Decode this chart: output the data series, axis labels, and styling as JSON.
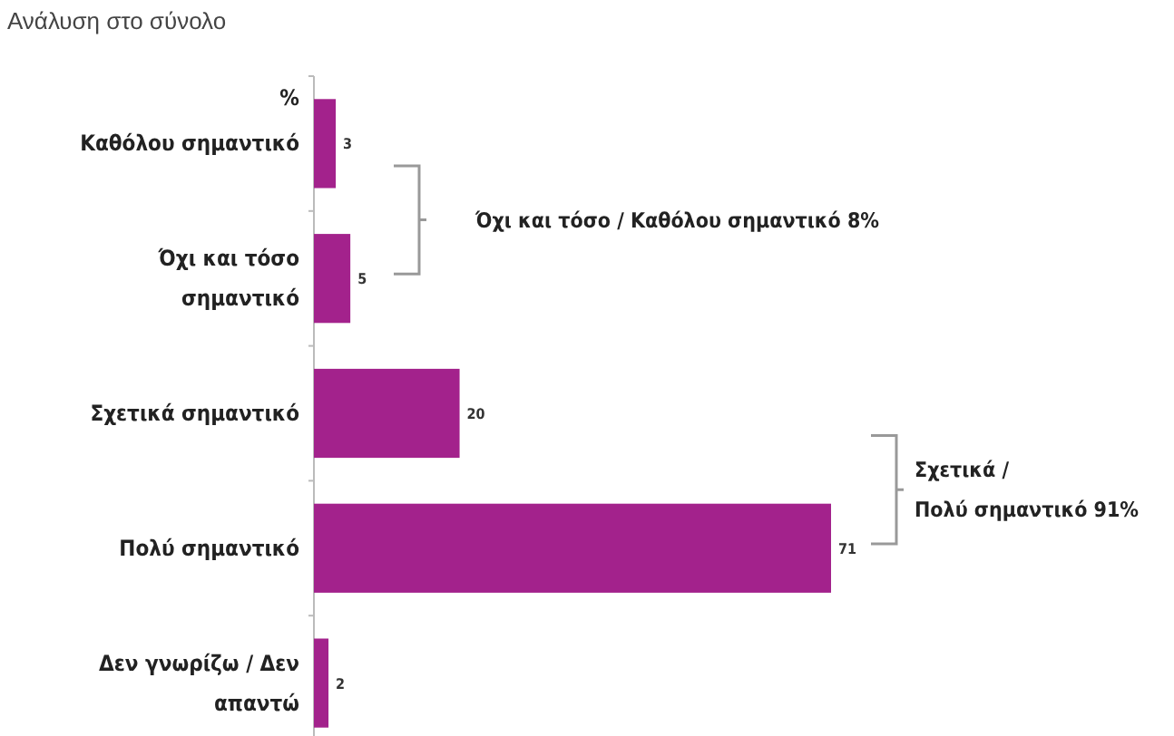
{
  "chart_data": {
    "type": "bar",
    "orientation": "horizontal",
    "title": "Ανάλυση στο σύνολο",
    "ylabel": "%",
    "categories": [
      "Καθόλου σημαντικό",
      "Όχι και τόσο σημαντικό",
      "Σχετικά σημαντικό",
      "Πολύ σημαντικό",
      "Δεν γνωρίζω / Δεν απαντώ"
    ],
    "values": [
      3,
      5,
      20,
      71,
      2
    ],
    "color": "#a3228c",
    "data_labels": true,
    "annotations": [
      "Όχι και τόσο / Καθόλου σημαντικό 8%",
      "Σχετικά / Πολύ σημαντικό 91%"
    ]
  }
}
